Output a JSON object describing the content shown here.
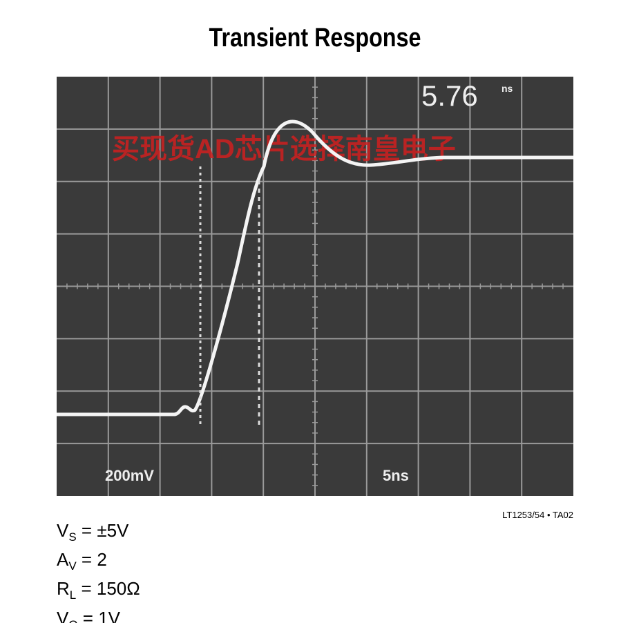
{
  "header": {
    "title": "Transient Response"
  },
  "scope": {
    "readout_value": "5.76",
    "readout_unit": "ns",
    "vertical_scale": "200mV",
    "horizontal_scale": "5ns",
    "watermark": "买现货AD芯片选择南皇电子"
  },
  "figure_id": "LT1253/54 • TA02",
  "conditions": [
    {
      "symbol": "V",
      "sub": "S",
      "rest": " = ±5V"
    },
    {
      "symbol": "A",
      "sub": "V",
      "rest": " = 2"
    },
    {
      "symbol": "R",
      "sub": "L",
      "rest": " = 150Ω"
    },
    {
      "symbol": "V",
      "sub": "O",
      "rest": " = 1V"
    }
  ]
}
